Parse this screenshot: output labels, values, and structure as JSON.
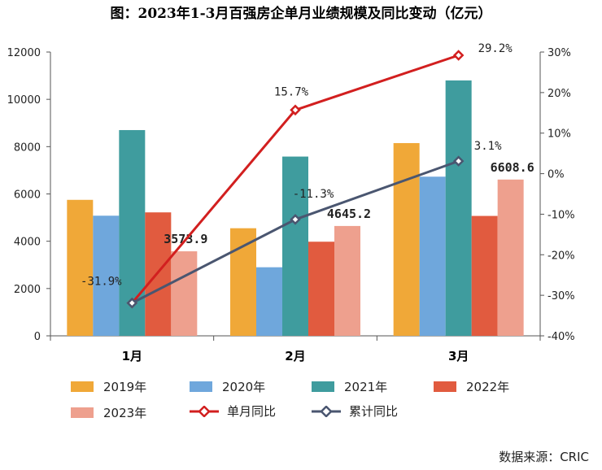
{
  "title": "图：2023年1-3月百强房企单月业绩规模及同比变动（亿元）",
  "source": "数据来源：CRIC",
  "colors": {
    "y2019": "#F0A838",
    "y2020": "#6FA7DC",
    "y2021": "#3F9C9E",
    "y2022": "#E15B3F",
    "y2023": "#EEA08E",
    "monthly_yoy": "#D21F1F",
    "cumulative_yoy": "#4A5670"
  },
  "chart_data": {
    "type": "bar",
    "categories": [
      "1月",
      "2月",
      "3月"
    ],
    "series": [
      {
        "name": "2019年",
        "values": [
          5750,
          4550,
          8150
        ]
      },
      {
        "name": "2020年",
        "values": [
          5080,
          2900,
          6730
        ]
      },
      {
        "name": "2021年",
        "values": [
          8700,
          7580,
          10800
        ]
      },
      {
        "name": "2022年",
        "values": [
          5220,
          3980,
          5070
        ]
      },
      {
        "name": "2023年",
        "values": [
          3573.9,
          4645.2,
          6608.6
        ]
      }
    ],
    "bar_labels": [
      "3573.9",
      "4645.2",
      "6608.6"
    ],
    "lines": [
      {
        "name": "单月同比",
        "values": [
          -31.9,
          15.7,
          29.2
        ],
        "labels": [
          "",
          "15.7%",
          "29.2%"
        ]
      },
      {
        "name": "累计同比",
        "values": [
          -31.9,
          -11.3,
          3.1
        ],
        "labels": [
          "-31.9%",
          "-11.3%",
          "3.1%"
        ]
      }
    ],
    "ylim": [
      0,
      12000
    ],
    "yticks": [
      "0",
      "2000",
      "4000",
      "6000",
      "8000",
      "10000",
      "12000"
    ],
    "y2lim": [
      -40,
      30
    ],
    "y2ticks": [
      "-40%",
      "-30%",
      "-20%",
      "-10%",
      "0%",
      "10%",
      "20%",
      "30%"
    ],
    "grid": false,
    "legend": "bottom"
  }
}
